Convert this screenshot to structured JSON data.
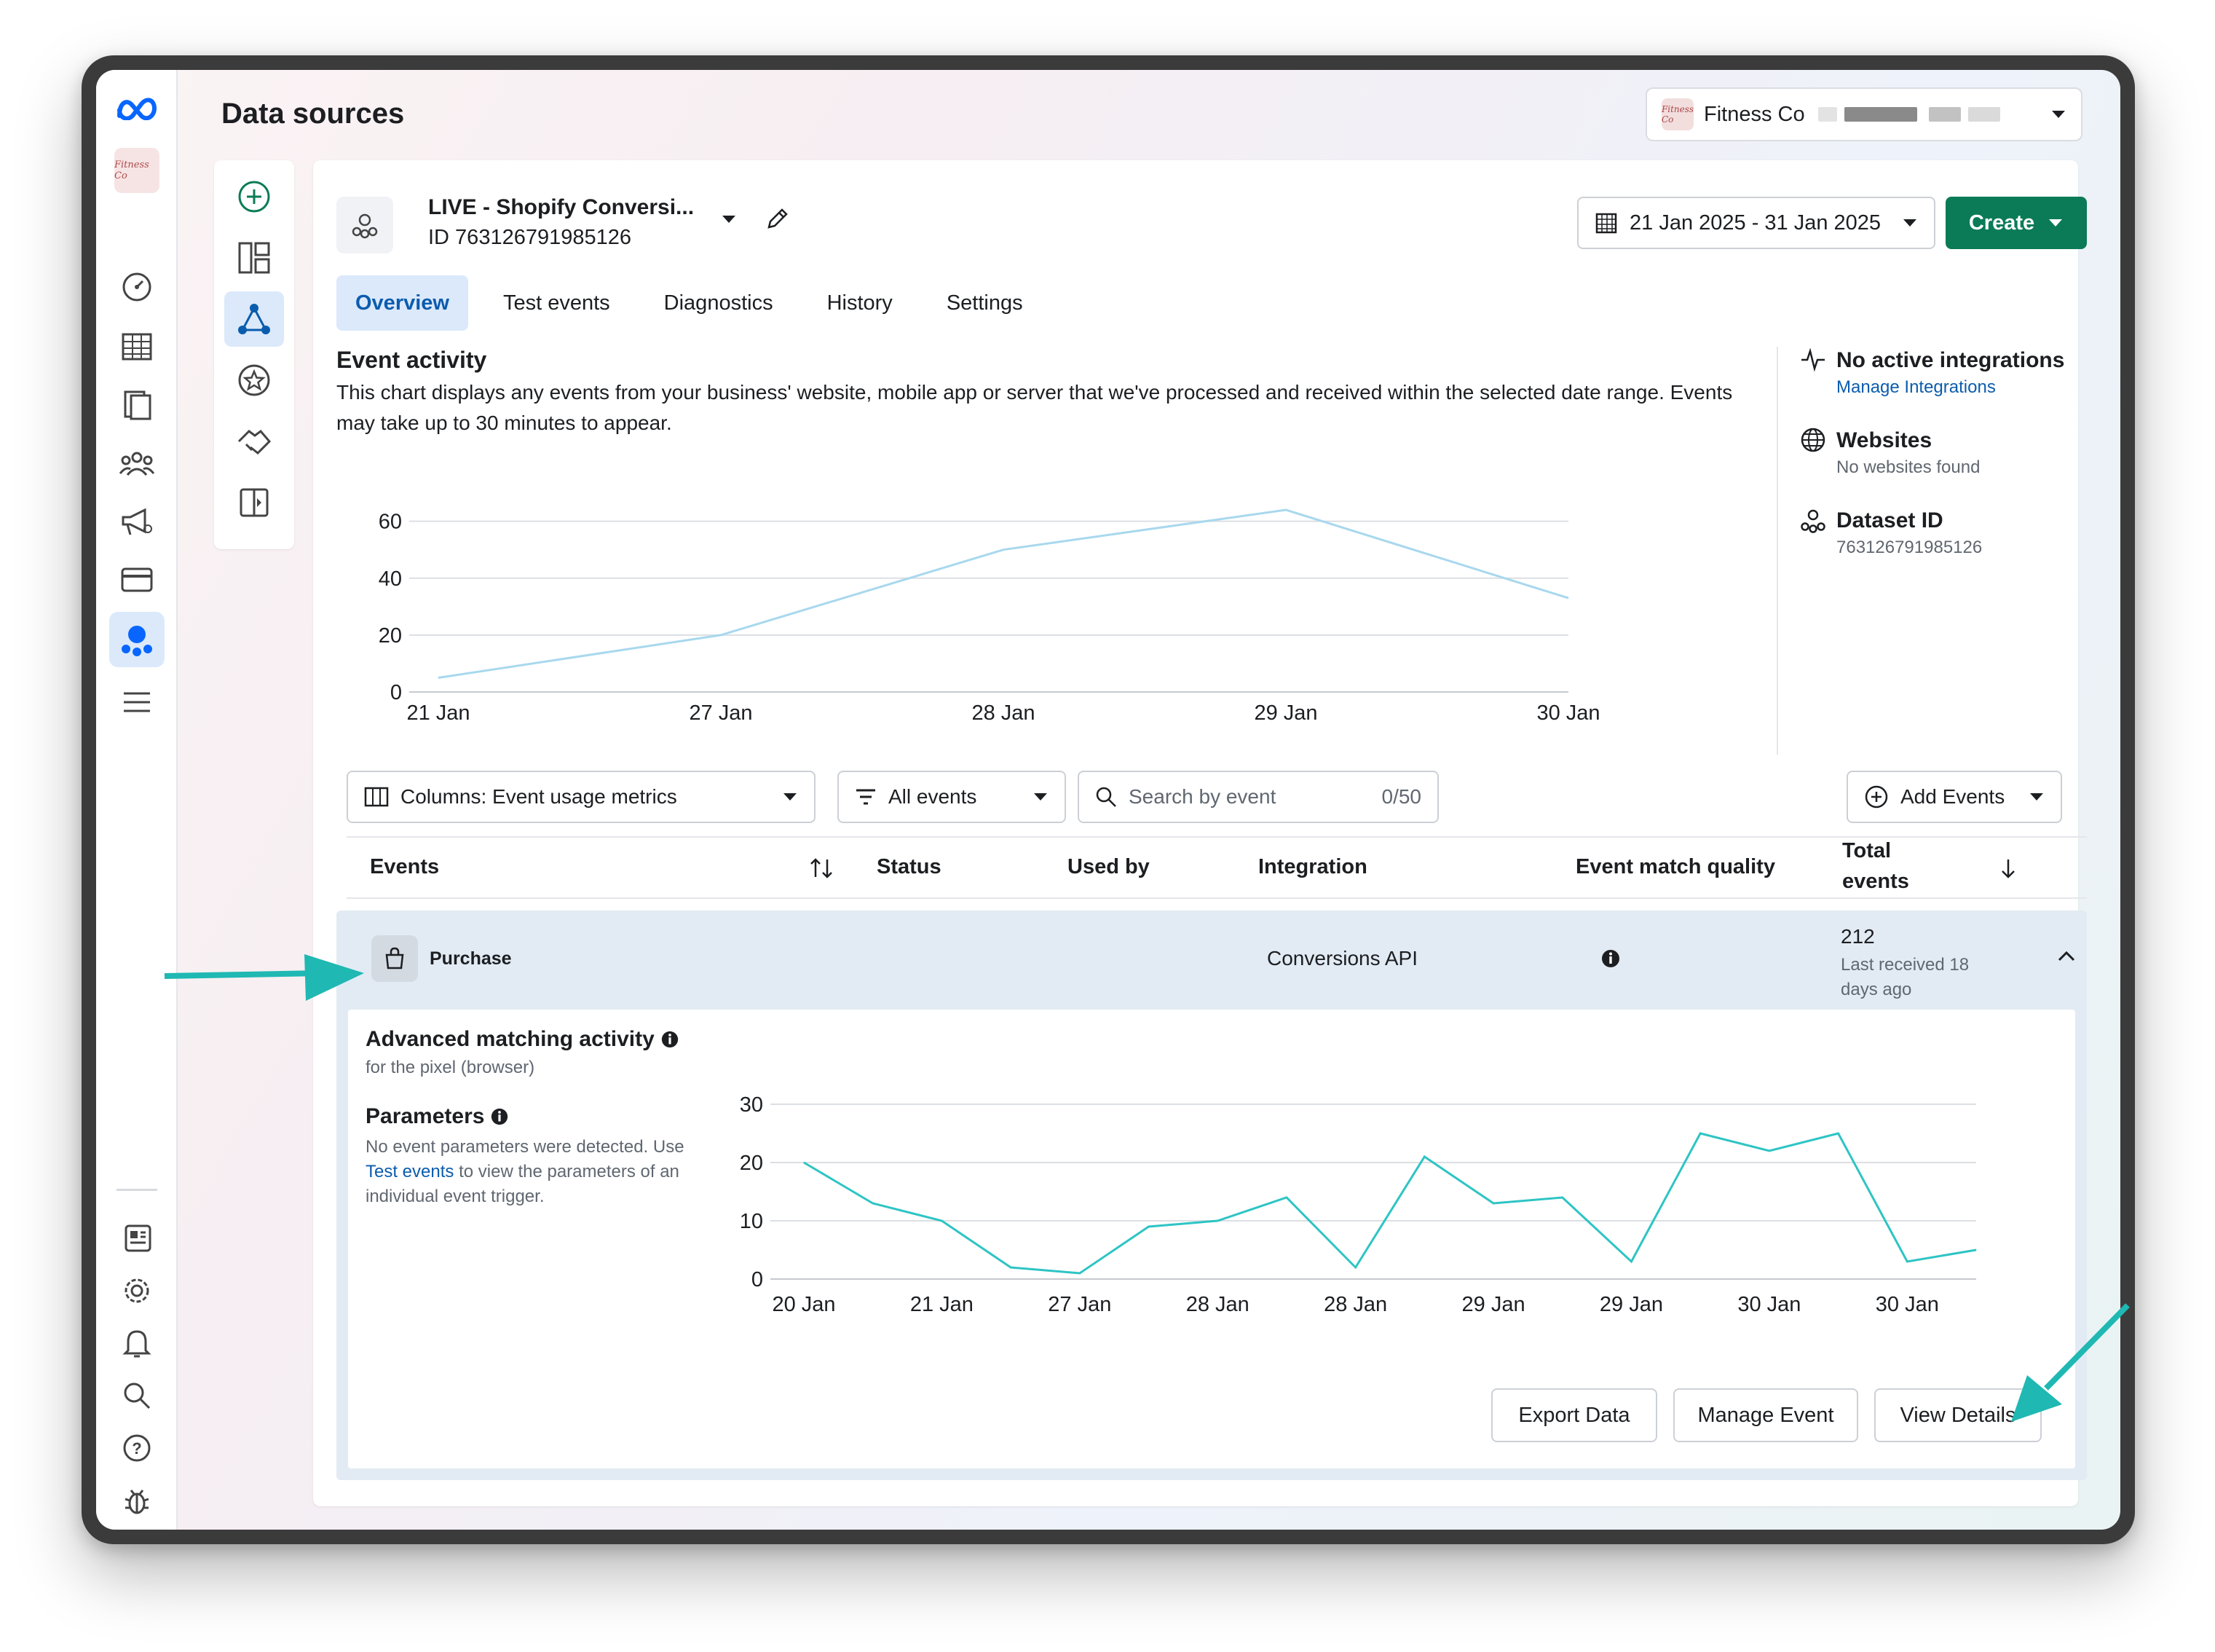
{
  "page": {
    "title": "Data sources"
  },
  "account": {
    "name": "Fitness Co",
    "logo_text": "Fitness Co"
  },
  "dataset": {
    "name": "LIVE - Shopify Conversi...",
    "id_line": "ID 763126791985126"
  },
  "date_range": {
    "label": "21 Jan 2025 - 31 Jan 2025"
  },
  "create": {
    "label": "Create"
  },
  "tabs": [
    {
      "label": "Overview",
      "active": true
    },
    {
      "label": "Test events"
    },
    {
      "label": "Diagnostics"
    },
    {
      "label": "History"
    },
    {
      "label": "Settings"
    }
  ],
  "event_activity": {
    "title": "Event activity",
    "description": "This chart displays any events from your business' website, mobile app or server that we've processed and received within the selected date range. Events may take up to 30 minutes to appear."
  },
  "side_info": {
    "integrations": {
      "title": "No active integrations",
      "link": "Manage Integrations"
    },
    "websites": {
      "title": "Websites",
      "sub": "No websites found"
    },
    "dataset_id": {
      "title": "Dataset ID",
      "value": "763126791985126"
    }
  },
  "filters": {
    "columns": "Columns: Event usage metrics",
    "events": "All events",
    "search_placeholder": "Search by event",
    "search_count": "0/50",
    "add_events": "Add Events"
  },
  "table": {
    "headers": {
      "events": "Events",
      "status": "Status",
      "used_by": "Used by",
      "integration": "Integration",
      "emq": "Event match quality",
      "total_1": "Total",
      "total_2": "events"
    },
    "row": {
      "name": "Purchase",
      "integration": "Conversions API",
      "total": "212",
      "last_received": "Last received 18 days ago"
    }
  },
  "details": {
    "am_title": "Advanced matching activity",
    "am_sub": "for the pixel (browser)",
    "params_title": "Parameters",
    "params_desc_1": "No event parameters were detected. Use ",
    "params_link": "Test events",
    "params_desc_2": " to view the parameters of an individual event trigger.",
    "buttons": {
      "export": "Export Data",
      "manage": "Manage Event",
      "view": "View Details"
    }
  },
  "colors": {
    "accent": "#0b5cad",
    "create_green": "#0a7b56",
    "chart_line_1": "#a8d8ee",
    "chart_line_2": "#2ec4c4",
    "arrow": "#1fb8b3"
  },
  "chart_data": [
    {
      "type": "line",
      "categories": [
        "21 Jan",
        "27 Jan",
        "28 Jan",
        "29 Jan",
        "30 Jan"
      ],
      "values": [
        5,
        20,
        50,
        64,
        33
      ],
      "yticks": [
        0,
        20,
        40,
        60
      ],
      "ylim": [
        0,
        64
      ],
      "grid": true
    },
    {
      "type": "line",
      "x_labels": [
        "20 Jan",
        "21 Jan",
        "27 Jan",
        "28 Jan",
        "28 Jan",
        "29 Jan",
        "29 Jan",
        "30 Jan",
        "30 Jan"
      ],
      "values": [
        20,
        13,
        10,
        2,
        1,
        9,
        10,
        14,
        2,
        21,
        13,
        14,
        3,
        25,
        22,
        25,
        3,
        5
      ],
      "yticks": [
        0,
        10,
        20,
        30
      ],
      "ylim": [
        0,
        30
      ],
      "grid": true
    }
  ]
}
